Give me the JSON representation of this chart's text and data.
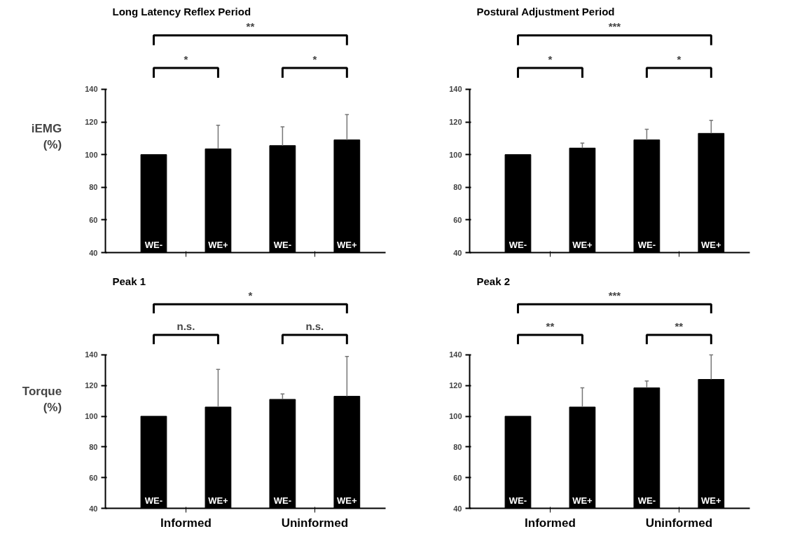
{
  "chart_data": [
    {
      "type": "bar",
      "title": "Long Latency Reflex Period",
      "ylabel": "iEMG (%)",
      "categories": [
        "WE-",
        "WE+",
        "WE-",
        "WE+"
      ],
      "values": [
        100,
        103.5,
        105.5,
        109
      ],
      "color": "#000000",
      "errors": [
        null,
        [
          103.5,
          118
        ],
        [
          105.5,
          117
        ],
        [
          109,
          124.5
        ]
      ],
      "ylim": [
        40,
        140
      ],
      "yticks": [
        40,
        60,
        80,
        100,
        120,
        140
      ],
      "grid": false,
      "annotations": [
        "*",
        "*",
        "**"
      ]
    },
    {
      "type": "bar",
      "title": "Postural Adjustment Period",
      "categories": [
        "WE-",
        "WE+",
        "WE-",
        "WE+"
      ],
      "values": [
        100,
        104,
        109,
        113
      ],
      "color": "#000000",
      "errors": [
        null,
        [
          104,
          107
        ],
        [
          109,
          115.5
        ],
        [
          113,
          121
        ]
      ],
      "ylim": [
        40,
        140
      ],
      "yticks": [
        40,
        60,
        80,
        100,
        120,
        140
      ],
      "grid": false,
      "annotations": [
        "*",
        "*",
        "***"
      ]
    },
    {
      "type": "bar",
      "title": "Peak 1",
      "ylabel": "Torque (%)",
      "categories": [
        "WE-",
        "WE+",
        "WE-",
        "WE+"
      ],
      "values": [
        100,
        106,
        111,
        113
      ],
      "color": "#000000",
      "errors": [
        null,
        [
          106,
          130.5
        ],
        [
          111,
          114.5
        ],
        [
          113,
          139
        ]
      ],
      "ylim": [
        40,
        140
      ],
      "yticks": [
        40,
        60,
        80,
        100,
        120,
        140
      ],
      "grid": false,
      "annotations": [
        "n.s.",
        "n.s.",
        "*",
        "Informed",
        "Uninformed"
      ]
    },
    {
      "type": "bar",
      "title": "Peak 2",
      "categories": [
        "WE-",
        "WE+",
        "WE-",
        "WE+"
      ],
      "values": [
        100,
        106,
        118.5,
        124
      ],
      "color": "#000000",
      "errors": [
        null,
        [
          106,
          118.5
        ],
        [
          118.5,
          123
        ],
        [
          124,
          140
        ]
      ],
      "ylim": [
        40,
        140
      ],
      "yticks": [
        40,
        60,
        80,
        100,
        120,
        140
      ],
      "grid": false,
      "annotations": [
        "**",
        "**",
        "***",
        "Informed",
        "Uninformed"
      ]
    }
  ]
}
